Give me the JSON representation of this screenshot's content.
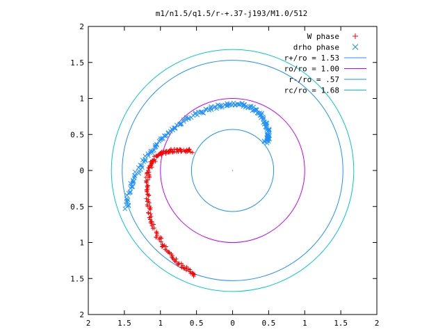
{
  "chart_data": {
    "type": "scatter",
    "title": "m1/n1.5/q1.5/r-+.37-j193/M1.0/512",
    "xlabel": "",
    "ylabel": "",
    "xlim": [
      -2,
      2
    ],
    "ylim": [
      -2,
      2
    ],
    "x_tick_labels": [
      "2",
      "1.5",
      "1",
      "0.5",
      "0",
      "0.5",
      "1",
      "1.5",
      "2"
    ],
    "y_tick_labels": [
      "2",
      "1.5",
      "1",
      "0.5",
      "0",
      "0.5",
      "1",
      "1.5",
      "2"
    ],
    "grid": false,
    "legend_position": "top-right",
    "series": [
      {
        "name": "W phase",
        "kind": "points",
        "marker": "+",
        "color": "#ff0000",
        "path_x": [
          -0.52,
          -0.6,
          -0.7,
          -0.8,
          -0.9,
          -0.98,
          -1.06,
          -1.12,
          -1.16,
          -1.18,
          -1.19,
          -1.18,
          -1.16,
          -1.12,
          -1.08,
          -1.02,
          -0.95,
          -0.88,
          -0.8,
          -0.72,
          -0.64,
          -0.57
        ],
        "path_y": [
          -1.46,
          -1.4,
          -1.33,
          -1.24,
          -1.13,
          -1.01,
          -0.87,
          -0.72,
          -0.56,
          -0.4,
          -0.25,
          -0.11,
          0.01,
          0.1,
          0.17,
          0.22,
          0.25,
          0.27,
          0.28,
          0.28,
          0.28,
          0.27
        ]
      },
      {
        "name": "drho phase",
        "kind": "points",
        "marker": "x",
        "color": "#1e90ff",
        "path_x": [
          -1.47,
          -1.44,
          -1.38,
          -1.3,
          -1.2,
          -1.08,
          -0.95,
          -0.8,
          -0.64,
          -0.48,
          -0.32,
          -0.16,
          0.0,
          0.13,
          0.25,
          0.34,
          0.42,
          0.47,
          0.5,
          0.5,
          0.48,
          0.45
        ],
        "path_y": [
          -0.52,
          -0.33,
          -0.15,
          0.02,
          0.18,
          0.33,
          0.47,
          0.6,
          0.71,
          0.8,
          0.86,
          0.9,
          0.92,
          0.91,
          0.88,
          0.82,
          0.73,
          0.62,
          0.52,
          0.45,
          0.42,
          0.4
        ]
      },
      {
        "name": "r+/ro = 1.53",
        "kind": "circle",
        "radius": 1.53,
        "color": "#1e90ff"
      },
      {
        "name": "ro/ro = 1.00",
        "kind": "circle",
        "radius": 1.0,
        "color": "#c000ff"
      },
      {
        "name": "r-/ro = .57",
        "kind": "circle",
        "radius": 0.57,
        "color": "#1e90ff"
      },
      {
        "name": "rc/ro = 1.68",
        "kind": "circle",
        "radius": 1.68,
        "color": "#00c8c8"
      }
    ]
  }
}
